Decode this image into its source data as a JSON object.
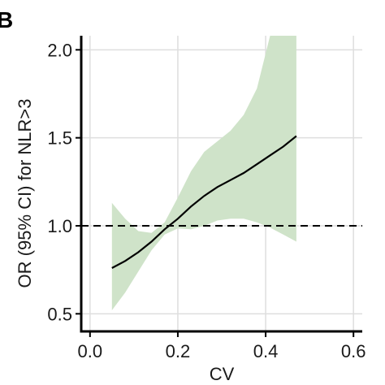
{
  "panel_label": "B",
  "chart_data": {
    "type": "line",
    "title": "",
    "xlabel": "CV",
    "ylabel": "OR (95% CI) for NLR>3",
    "xlim": [
      -0.02,
      0.62
    ],
    "ylim": [
      0.4,
      2.08
    ],
    "xticks": [
      0.0,
      0.2,
      0.4,
      0.6
    ],
    "xtick_labels": [
      "0.0",
      "0.2",
      "0.4",
      "0.6"
    ],
    "yticks": [
      0.5,
      1.0,
      1.5,
      2.0
    ],
    "ytick_labels": [
      "0.5",
      "1.0",
      "1.5",
      "2.0"
    ],
    "grid": true,
    "reference_line": {
      "y": 1.0,
      "style": "dashed"
    },
    "series": [
      {
        "x": [
          0.05,
          0.08,
          0.11,
          0.14,
          0.17,
          0.2,
          0.23,
          0.26,
          0.29,
          0.32,
          0.35,
          0.38,
          0.41,
          0.44,
          0.47
        ],
        "y": [
          0.76,
          0.8,
          0.85,
          0.91,
          0.98,
          1.04,
          1.11,
          1.17,
          1.22,
          1.26,
          1.3,
          1.35,
          1.4,
          1.45,
          1.51
        ],
        "lower": [
          0.52,
          0.62,
          0.74,
          0.86,
          0.95,
          0.985,
          0.98,
          1.0,
          1.03,
          1.04,
          1.04,
          1.02,
          0.99,
          0.95,
          0.91
        ],
        "upper": [
          1.13,
          1.04,
          0.97,
          0.96,
          1.02,
          1.16,
          1.31,
          1.42,
          1.48,
          1.54,
          1.63,
          1.78,
          2.08,
          2.08,
          2.08
        ]
      }
    ],
    "colors": {
      "line": "#000000",
      "band": "#cfe3c9",
      "grid": "#dedede",
      "reference": "#000000"
    }
  }
}
